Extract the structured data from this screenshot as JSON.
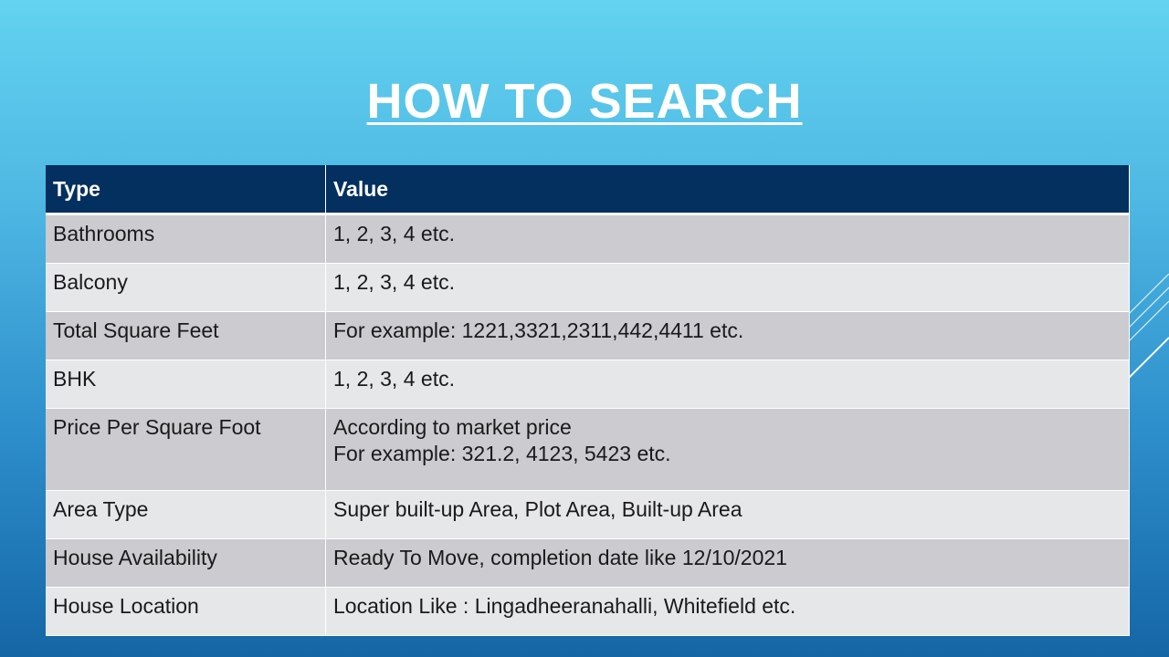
{
  "title": "HOW TO SEARCH",
  "table": {
    "headers": [
      "Type",
      "Value"
    ],
    "rows": [
      {
        "type": "Bathrooms",
        "value": [
          "1, 2, 3, 4 etc."
        ]
      },
      {
        "type": "Balcony",
        "value": [
          "1, 2, 3, 4 etc."
        ]
      },
      {
        "type": "Total Square Feet",
        "value": [
          "For example: 1221,3321,2311,442,4411  etc."
        ]
      },
      {
        "type": "BHK",
        "value": [
          "1, 2, 3, 4 etc."
        ]
      },
      {
        "type": "Price Per Square Foot",
        "value": [
          "According to market price",
          "For example: 321.2, 4123, 5423 etc."
        ]
      },
      {
        "type": "Area Type",
        "value": [
          "Super built-up  Area, Plot  Area, Built-up  Area"
        ]
      },
      {
        "type": "House Availability",
        "value": [
          "Ready To Move, completion date like 12/10/2021"
        ]
      },
      {
        "type": "House Location",
        "value": [
          "Location Like : Lingadheeranahalli, Whitefield etc."
        ]
      }
    ]
  },
  "colors": {
    "header_bg": "#03305f",
    "row_odd": "#cbcbd0",
    "row_even": "#e6e7e9"
  }
}
